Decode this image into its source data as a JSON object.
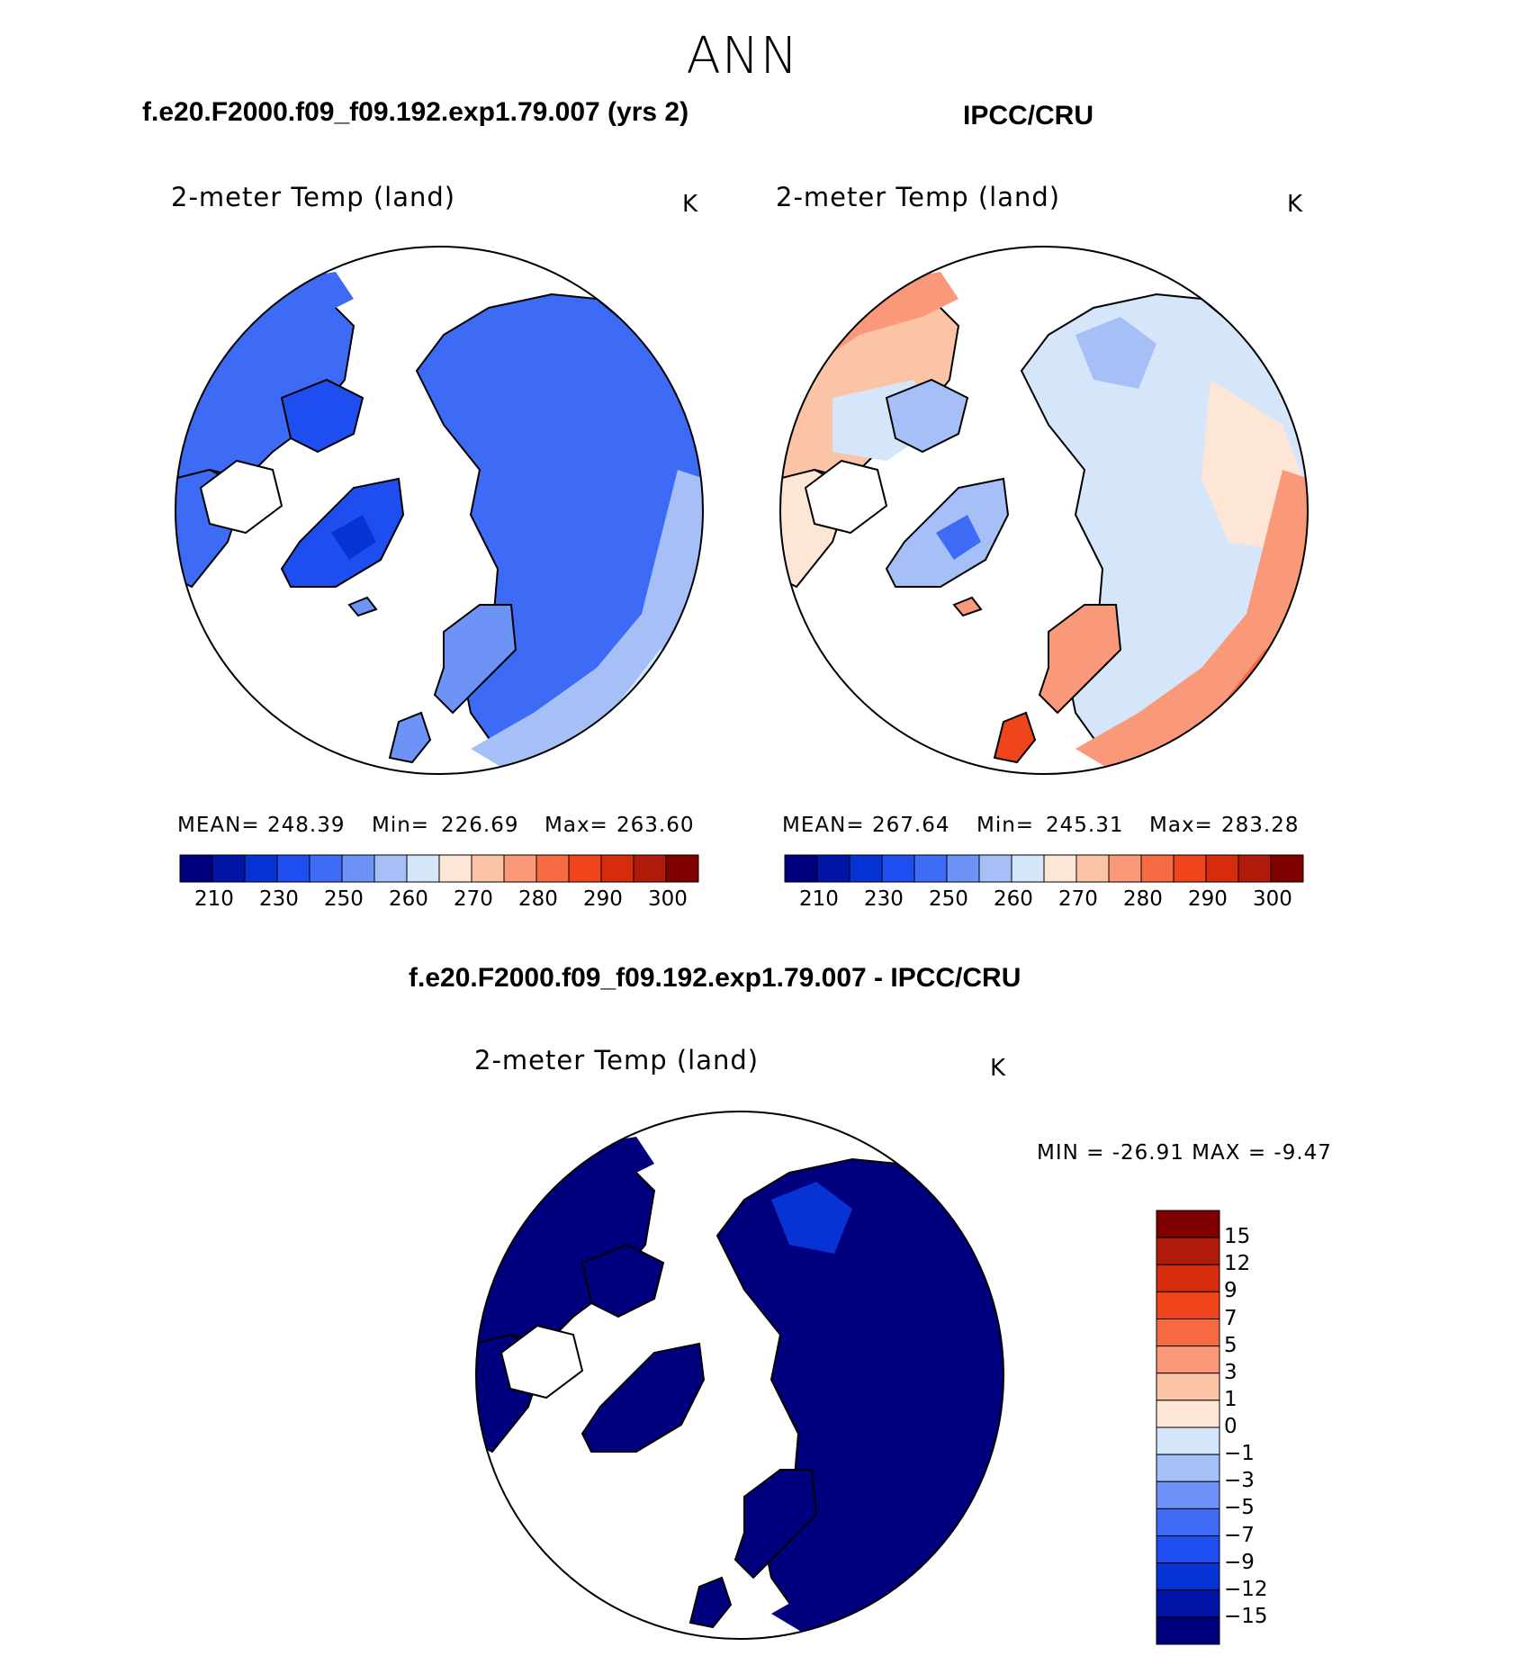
{
  "figure": {
    "title": "ANN",
    "model_case": "f.e20.F2000.f09_f09.192.exp1.79.007 (yrs 2)",
    "obs_case": "IPCC/CRU",
    "diff_title": "f.e20.F2000.f09_f09.192.exp1.79.007 - IPCC/CRU"
  },
  "colors": {
    "abs_scale": [
      "#00007f",
      "#0015a6",
      "#0733d4",
      "#1e4ef0",
      "#3d6bf5",
      "#6e93f7",
      "#a6c0f7",
      "#d5e6fa",
      "#fde6d6",
      "#fcc4a6",
      "#f9997a",
      "#f66b43",
      "#f0441c",
      "#d42c0c",
      "#b01a0a",
      "#800000"
    ],
    "diff_scale": [
      "#00007f",
      "#0015a6",
      "#0733d4",
      "#1e4ef0",
      "#3d6bf5",
      "#6e93f7",
      "#a6c0f7",
      "#d5e6fa",
      "#fde6d6",
      "#fcc4a6",
      "#f9997a",
      "#f66b43",
      "#f0441c",
      "#d42c0c",
      "#b01a0a",
      "#800000"
    ]
  },
  "panels": [
    {
      "label": "2-meter Temp (land)",
      "units": "K",
      "mean_label": "MEAN=",
      "mean": "248.39",
      "min_label": "Min=",
      "min": "226.69",
      "max_label": "Max=",
      "max": "263.60",
      "colorbar_ticks": [
        "210",
        "230",
        "250",
        "260",
        "270",
        "280",
        "290",
        "300"
      ]
    },
    {
      "label": "2-meter Temp (land)",
      "units": "K",
      "mean_label": "MEAN=",
      "mean": "267.64",
      "min_label": "Min=",
      "min": "245.31",
      "max_label": "Max=",
      "max": "283.28",
      "colorbar_ticks": [
        "210",
        "230",
        "250",
        "260",
        "270",
        "280",
        "290",
        "300"
      ]
    },
    {
      "label": "2-meter Temp (land)",
      "units": "K",
      "minmax_text": "MIN = -26.91 MAX =  -9.47",
      "colorbar_ticks": [
        "15",
        "12",
        "9",
        "7",
        "5",
        "3",
        "1",
        "0",
        "-1",
        "-3",
        "-5",
        "-7",
        "-9",
        "-12",
        "-15"
      ]
    }
  ]
}
